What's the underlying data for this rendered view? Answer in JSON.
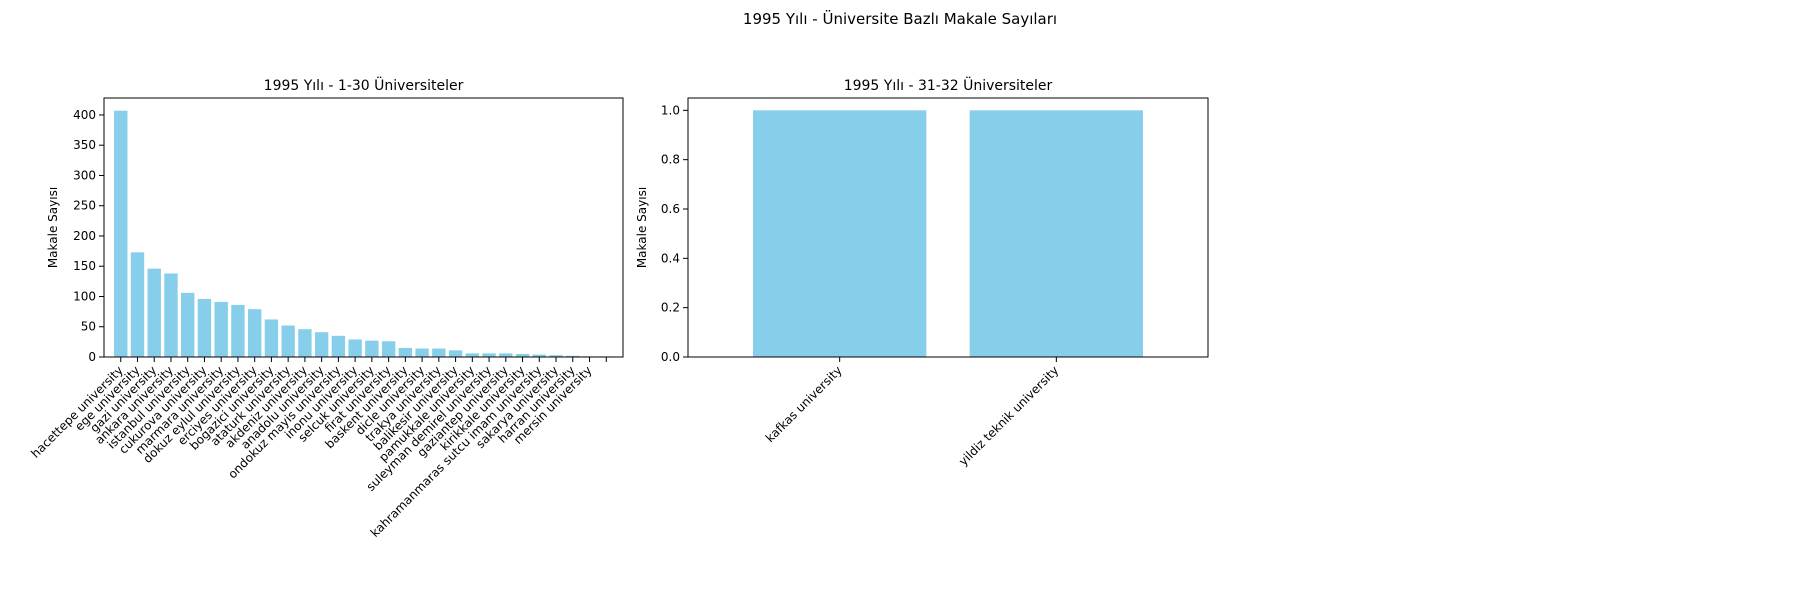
{
  "figure_title": "1995 Yılı - Üniversite Bazlı Makale Sayıları",
  "colors": {
    "bar": "#87ceeb",
    "axis": "#000000"
  },
  "chart_data": [
    {
      "type": "bar",
      "title": "1995 Yılı - 1-30 Üniversiteler",
      "xlabel": "",
      "ylabel": "Makale Sayısı",
      "ylim": [
        0,
        428
      ],
      "yticks": [
        0,
        50,
        100,
        150,
        200,
        250,
        300,
        350,
        400
      ],
      "grid": false,
      "categories": [
        "hacettepe university",
        "ege university",
        "gazi university",
        "ankara university",
        "istanbul university",
        "cukurova university",
        "marmara university",
        "dokuz eylul university",
        "erciyes university",
        "bogazici university",
        "ataturk university",
        "akdeniz university",
        "anadolu university",
        "ondokuz mayis university",
        "inonu university",
        "selcuk university",
        "firat university",
        "baskent university",
        "dicle university",
        "trakya university",
        "balikesir university",
        "pamukkale university",
        "suleyman demirel university",
        "gaziantep university",
        "kirikkale university",
        "kahramanmaras sutcu imam university",
        "sakarya university",
        "harran university",
        "mersin university",
        ""
      ],
      "values": [
        407,
        173,
        146,
        138,
        106,
        96,
        91,
        86,
        79,
        62,
        52,
        46,
        41,
        35,
        29,
        27,
        26,
        15,
        14,
        14,
        11,
        6,
        6,
        6,
        5,
        4,
        3,
        2,
        1,
        1
      ]
    },
    {
      "type": "bar",
      "title": "1995 Yılı - 31-32 Üniversiteler",
      "xlabel": "",
      "ylabel": "Makale Sayısı",
      "ylim": [
        0,
        1.05
      ],
      "yticks": [
        0.0,
        0.2,
        0.4,
        0.6,
        0.8,
        1.0
      ],
      "grid": false,
      "categories": [
        "kafkas university",
        "yildiz teknik university"
      ],
      "values": [
        1,
        1
      ]
    }
  ]
}
